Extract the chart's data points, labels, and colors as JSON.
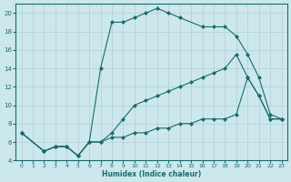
{
  "xlabel": "Humidex (Indice chaleur)",
  "bg_color": "#cce8ed",
  "grid_color": "#b0cfd5",
  "line_color": "#1a6b6b",
  "xlim": [
    -0.5,
    23.5
  ],
  "ylim": [
    4,
    21
  ],
  "xticks": [
    0,
    1,
    2,
    3,
    4,
    5,
    6,
    7,
    8,
    9,
    10,
    11,
    12,
    13,
    14,
    15,
    16,
    17,
    18,
    19,
    20,
    21,
    22,
    23
  ],
  "yticks": [
    4,
    6,
    8,
    10,
    12,
    14,
    16,
    18,
    20
  ],
  "series": [
    {
      "x": [
        0,
        2,
        3,
        4,
        5,
        6,
        7,
        8,
        9,
        10,
        11,
        12,
        13,
        14,
        15,
        16,
        17,
        18,
        19,
        20,
        21,
        22,
        23
      ],
      "y": [
        7,
        5,
        5.5,
        5.5,
        4.5,
        6,
        6,
        6.5,
        6.5,
        7,
        7,
        7.5,
        7.5,
        8,
        8,
        8.5,
        8.5,
        8.5,
        9,
        13,
        11,
        8.5,
        8.5
      ],
      "marker": "D",
      "markersize": 2,
      "linewidth": 0.8
    },
    {
      "x": [
        0,
        2,
        3,
        4,
        5,
        6,
        7,
        8,
        9,
        10,
        11,
        12,
        13,
        14,
        15,
        16,
        17,
        18,
        19,
        20,
        21,
        22,
        23
      ],
      "y": [
        7,
        5,
        5.5,
        5.5,
        4.5,
        6,
        6,
        7,
        8.5,
        10,
        10.5,
        11,
        11.5,
        12,
        12.5,
        13,
        13.5,
        14,
        15.5,
        13,
        11,
        8.5,
        8.5
      ],
      "marker": "D",
      "markersize": 2,
      "linewidth": 0.8
    },
    {
      "x": [
        0,
        2,
        3,
        4,
        5,
        6,
        7,
        8,
        9,
        10,
        11,
        12,
        13,
        14,
        16,
        17,
        18,
        19,
        20,
        21,
        22,
        23
      ],
      "y": [
        7,
        5,
        5.5,
        5.5,
        4.5,
        6,
        14,
        19,
        19,
        19.5,
        20,
        20.5,
        20,
        19.5,
        18.5,
        18.5,
        18.5,
        17.5,
        15.5,
        13,
        9,
        8.5
      ],
      "marker": "D",
      "markersize": 2,
      "linewidth": 0.8
    }
  ]
}
